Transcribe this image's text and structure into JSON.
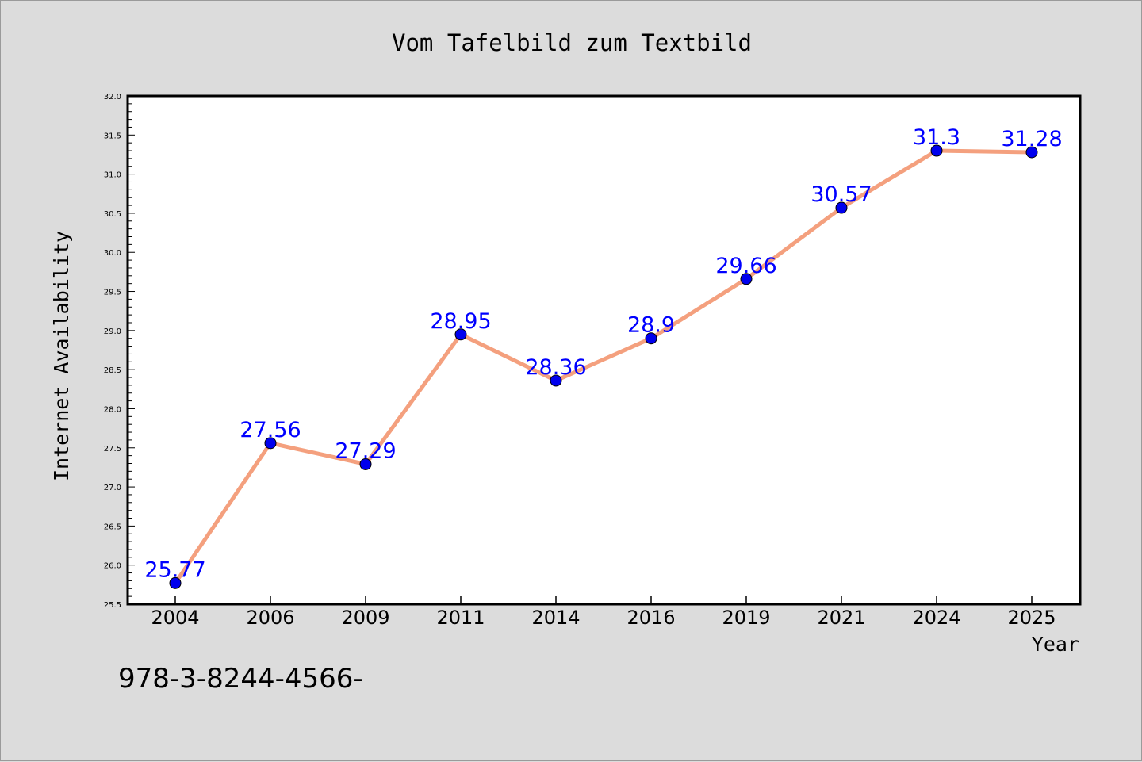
{
  "chart_data": {
    "type": "line",
    "title": "Vom Tafelbild zum Textbild",
    "xlabel": "Year",
    "ylabel": "Internet Availability",
    "categories": [
      "2004",
      "2006",
      "2009",
      "2011",
      "2014",
      "2016",
      "2019",
      "2021",
      "2024",
      "2025"
    ],
    "values": [
      25.77,
      27.56,
      27.29,
      28.95,
      28.36,
      28.9,
      29.66,
      30.57,
      31.3,
      31.28
    ],
    "data_labels": [
      "25.77",
      "27.56",
      "27.29",
      "28.95",
      "28.36",
      "28.9",
      "29.66",
      "30.57",
      "31.3",
      "31.28"
    ],
    "ylim": [
      25.5,
      32.0
    ],
    "yticks": [
      "25.5",
      "26.0",
      "26.5",
      "27.0",
      "27.5",
      "28.0",
      "28.5",
      "29.0",
      "29.5",
      "30.0",
      "30.5",
      "31.0",
      "31.5",
      "32.0"
    ],
    "grid": false,
    "legend": "none",
    "colors": {
      "line": "#f4a07e",
      "marker": "#0000ee",
      "label": "#0000ff",
      "background": "#dcdcdc",
      "plot": "#ffffff"
    }
  },
  "footer_text": "978-3-8244-4566-"
}
